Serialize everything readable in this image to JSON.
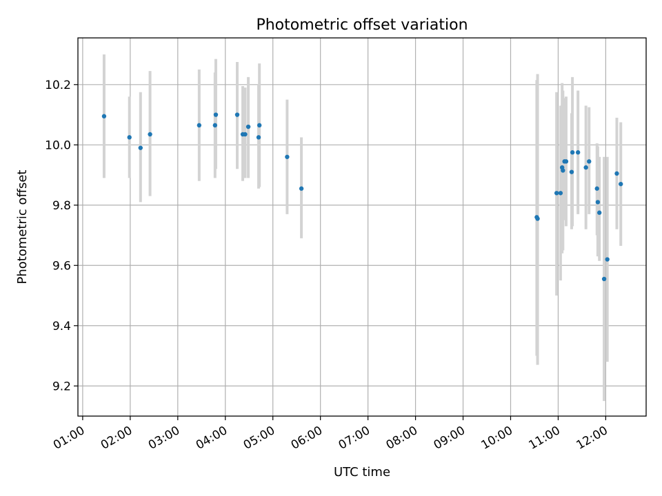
{
  "chart_data": {
    "type": "scatter",
    "title": "Photometric offset variation",
    "xlabel": "UTC time",
    "ylabel": "Photometric offset",
    "x_tick_labels": [
      "01:00",
      "02:00",
      "03:00",
      "04:00",
      "05:00",
      "06:00",
      "07:00",
      "08:00",
      "09:00",
      "10:00",
      "11:00",
      "12:00"
    ],
    "x_tick_hours": [
      1,
      2,
      3,
      4,
      5,
      6,
      7,
      8,
      9,
      10,
      11,
      12
    ],
    "y_ticks": [
      9.2,
      9.4,
      9.6,
      9.8,
      10.0,
      10.2
    ],
    "y_tick_labels": [
      "9.2",
      "9.4",
      "9.6",
      "9.8",
      "10.0",
      "10.2"
    ],
    "xlim_hours": [
      0.9,
      12.85
    ],
    "ylim": [
      9.1,
      10.355
    ],
    "grid": true,
    "colors": {
      "point": "#1f77b4",
      "errorbar": "#d3d3d3",
      "grid": "#b0b0b0"
    },
    "points": [
      {
        "t": "01:27",
        "y": 10.095,
        "lo": 9.89,
        "hi": 10.3
      },
      {
        "t": "01:59",
        "y": 10.025,
        "lo": 9.89,
        "hi": 10.16
      },
      {
        "t": "02:13",
        "y": 9.99,
        "lo": 9.81,
        "hi": 10.175
      },
      {
        "t": "02:25",
        "y": 10.035,
        "lo": 9.83,
        "hi": 10.245
      },
      {
        "t": "03:27",
        "y": 10.065,
        "lo": 9.88,
        "hi": 10.25
      },
      {
        "t": "03:47",
        "y": 10.065,
        "lo": 9.89,
        "hi": 10.24
      },
      {
        "t": "03:48",
        "y": 10.1,
        "lo": 9.92,
        "hi": 10.285
      },
      {
        "t": "04:15",
        "y": 10.1,
        "lo": 9.92,
        "hi": 10.275
      },
      {
        "t": "04:22",
        "y": 10.035,
        "lo": 9.88,
        "hi": 10.195
      },
      {
        "t": "04:25",
        "y": 10.035,
        "lo": 9.89,
        "hi": 10.19
      },
      {
        "t": "04:29",
        "y": 10.06,
        "lo": 9.89,
        "hi": 10.225
      },
      {
        "t": "04:42",
        "y": 10.025,
        "lo": 9.855,
        "hi": 10.2
      },
      {
        "t": "04:43",
        "y": 10.065,
        "lo": 9.86,
        "hi": 10.27
      },
      {
        "t": "05:18",
        "y": 9.96,
        "lo": 9.77,
        "hi": 10.15
      },
      {
        "t": "05:36",
        "y": 9.855,
        "lo": 9.69,
        "hi": 10.025
      },
      {
        "t": "10:33",
        "y": 9.76,
        "lo": 9.3,
        "hi": 10.215
      },
      {
        "t": "10:34",
        "y": 9.755,
        "lo": 9.27,
        "hi": 10.235
      },
      {
        "t": "10:58",
        "y": 9.84,
        "lo": 9.5,
        "hi": 10.175
      },
      {
        "t": "11:03",
        "y": 9.84,
        "lo": 9.55,
        "hi": 10.13
      },
      {
        "t": "11:05",
        "y": 9.925,
        "lo": 9.64,
        "hi": 10.205
      },
      {
        "t": "11:06",
        "y": 9.915,
        "lo": 9.65,
        "hi": 10.18
      },
      {
        "t": "11:08",
        "y": 9.945,
        "lo": 9.75,
        "hi": 10.155
      },
      {
        "t": "11:10",
        "y": 9.945,
        "lo": 9.73,
        "hi": 10.16
      },
      {
        "t": "11:17",
        "y": 9.91,
        "lo": 9.72,
        "hi": 10.105
      },
      {
        "t": "11:18",
        "y": 9.975,
        "lo": 9.73,
        "hi": 10.225
      },
      {
        "t": "11:25",
        "y": 9.975,
        "lo": 9.77,
        "hi": 10.18
      },
      {
        "t": "11:35",
        "y": 9.925,
        "lo": 9.72,
        "hi": 10.13
      },
      {
        "t": "11:39",
        "y": 9.945,
        "lo": 9.77,
        "hi": 10.125
      },
      {
        "t": "11:49",
        "y": 9.855,
        "lo": 9.7,
        "hi": 10.005
      },
      {
        "t": "11:50",
        "y": 9.81,
        "lo": 9.63,
        "hi": 9.995
      },
      {
        "t": "11:52",
        "y": 9.775,
        "lo": 9.615,
        "hi": 9.96
      },
      {
        "t": "11:58",
        "y": 9.555,
        "lo": 9.15,
        "hi": 9.96
      },
      {
        "t": "12:02",
        "y": 9.62,
        "lo": 9.28,
        "hi": 9.96
      },
      {
        "t": "12:14",
        "y": 9.905,
        "lo": 9.72,
        "hi": 10.09
      },
      {
        "t": "12:19",
        "y": 9.87,
        "lo": 9.665,
        "hi": 10.075
      }
    ]
  }
}
